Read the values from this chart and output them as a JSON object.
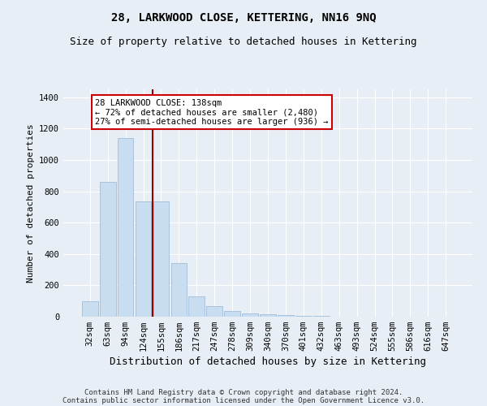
{
  "title": "28, LARKWOOD CLOSE, KETTERING, NN16 9NQ",
  "subtitle": "Size of property relative to detached houses in Kettering",
  "xlabel": "Distribution of detached houses by size in Kettering",
  "ylabel": "Number of detached properties",
  "bar_labels": [
    "32sqm",
    "63sqm",
    "94sqm",
    "124sqm",
    "155sqm",
    "186sqm",
    "217sqm",
    "247sqm",
    "278sqm",
    "309sqm",
    "340sqm",
    "370sqm",
    "401sqm",
    "432sqm",
    "463sqm",
    "493sqm",
    "524sqm",
    "555sqm",
    "586sqm",
    "616sqm",
    "647sqm"
  ],
  "bar_values": [
    100,
    860,
    1140,
    735,
    735,
    340,
    130,
    65,
    35,
    20,
    15,
    10,
    5,
    3,
    2,
    1,
    1,
    1,
    0,
    0,
    0
  ],
  "bar_color": "#c9ddf0",
  "bar_edge_color": "#a0bdd8",
  "vline_x_index": 3.5,
  "vline_color": "#990000",
  "annotation_line1": "28 LARKWOOD CLOSE: 138sqm",
  "annotation_line2": "← 72% of detached houses are smaller (2,480)",
  "annotation_line3": "27% of semi-detached houses are larger (936) →",
  "annotation_box_color": "#ffffff",
  "annotation_box_edge_color": "#cc0000",
  "ylim": [
    0,
    1450
  ],
  "yticks": [
    0,
    200,
    400,
    600,
    800,
    1000,
    1200,
    1400
  ],
  "footer_line1": "Contains HM Land Registry data © Crown copyright and database right 2024.",
  "footer_line2": "Contains public sector information licensed under the Open Government Licence v3.0.",
  "bg_color": "#e8eef5",
  "plot_bg_color": "#e8eef5",
  "grid_color": "#ffffff",
  "title_fontsize": 10,
  "subtitle_fontsize": 9,
  "ylabel_fontsize": 8,
  "xlabel_fontsize": 9,
  "tick_fontsize": 7.5,
  "footer_fontsize": 6.5,
  "annotation_fontsize": 7.5
}
